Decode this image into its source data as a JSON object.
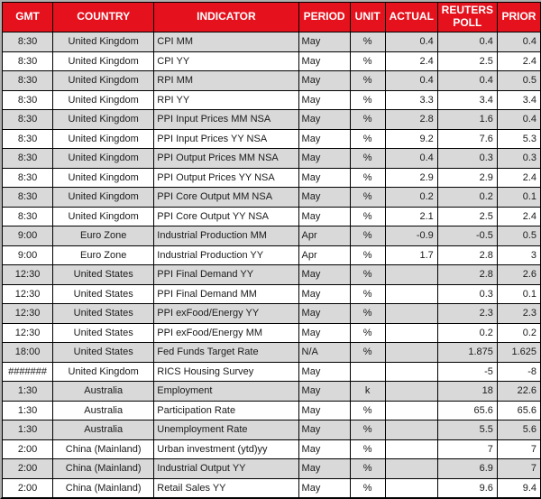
{
  "colors": {
    "header_bg": "#e5121d",
    "header_text": "#ffffff",
    "row_shaded": "#d9d9d9",
    "row_plain": "#ffffff",
    "grid_line": "#000000",
    "outer_edge": "#b0b0b0"
  },
  "table": {
    "columns": [
      {
        "key": "gmt",
        "label": "GMT"
      },
      {
        "key": "country",
        "label": "COUNTRY"
      },
      {
        "key": "indicator",
        "label": "INDICATOR"
      },
      {
        "key": "period",
        "label": "PERIOD"
      },
      {
        "key": "unit",
        "label": "UNIT"
      },
      {
        "key": "actual",
        "label": "ACTUAL"
      },
      {
        "key": "poll",
        "label": "REUTERS POLL"
      },
      {
        "key": "prior",
        "label": "PRIOR"
      }
    ],
    "rows": [
      {
        "gmt": "8:30",
        "country": "United Kingdom",
        "indicator": "CPI MM",
        "period": "May",
        "unit": "%",
        "actual": "0.4",
        "poll": "0.4",
        "prior": "0.4"
      },
      {
        "gmt": "8:30",
        "country": "United Kingdom",
        "indicator": "CPI YY",
        "period": "May",
        "unit": "%",
        "actual": "2.4",
        "poll": "2.5",
        "prior": "2.4"
      },
      {
        "gmt": "8:30",
        "country": "United Kingdom",
        "indicator": "RPI MM",
        "period": "May",
        "unit": "%",
        "actual": "0.4",
        "poll": "0.4",
        "prior": "0.5"
      },
      {
        "gmt": "8:30",
        "country": "United Kingdom",
        "indicator": "RPI YY",
        "period": "May",
        "unit": "%",
        "actual": "3.3",
        "poll": "3.4",
        "prior": "3.4"
      },
      {
        "gmt": "8:30",
        "country": "United Kingdom",
        "indicator": "PPI Input Prices MM NSA",
        "period": "May",
        "unit": "%",
        "actual": "2.8",
        "poll": "1.6",
        "prior": "0.4"
      },
      {
        "gmt": "8:30",
        "country": "United Kingdom",
        "indicator": "PPI Input Prices YY NSA",
        "period": "May",
        "unit": "%",
        "actual": "9.2",
        "poll": "7.6",
        "prior": "5.3"
      },
      {
        "gmt": "8:30",
        "country": "United Kingdom",
        "indicator": "PPI Output Prices MM NSA",
        "period": "May",
        "unit": "%",
        "actual": "0.4",
        "poll": "0.3",
        "prior": "0.3"
      },
      {
        "gmt": "8:30",
        "country": "United Kingdom",
        "indicator": "PPI Output Prices YY NSA",
        "period": "May",
        "unit": "%",
        "actual": "2.9",
        "poll": "2.9",
        "prior": "2.4"
      },
      {
        "gmt": "8:30",
        "country": "United Kingdom",
        "indicator": "PPI Core Output MM NSA",
        "period": "May",
        "unit": "%",
        "actual": "0.2",
        "poll": "0.2",
        "prior": "0.1"
      },
      {
        "gmt": "8:30",
        "country": "United Kingdom",
        "indicator": "PPI Core Output YY NSA",
        "period": "May",
        "unit": "%",
        "actual": "2.1",
        "poll": "2.5",
        "prior": "2.4"
      },
      {
        "gmt": "9:00",
        "country": "Euro Zone",
        "indicator": "Industrial Production MM",
        "period": "Apr",
        "unit": "%",
        "actual": "-0.9",
        "poll": "-0.5",
        "prior": "0.5"
      },
      {
        "gmt": "9:00",
        "country": "Euro Zone",
        "indicator": "Industrial Production YY",
        "period": "Apr",
        "unit": "%",
        "actual": "1.7",
        "poll": "2.8",
        "prior": "3"
      },
      {
        "gmt": "12:30",
        "country": "United States",
        "indicator": "PPI Final Demand YY",
        "period": "May",
        "unit": "%",
        "actual": "",
        "poll": "2.8",
        "prior": "2.6"
      },
      {
        "gmt": "12:30",
        "country": "United States",
        "indicator": "PPI Final Demand MM",
        "period": "May",
        "unit": "%",
        "actual": "",
        "poll": "0.3",
        "prior": "0.1"
      },
      {
        "gmt": "12:30",
        "country": "United States",
        "indicator": "PPI exFood/Energy YY",
        "period": "May",
        "unit": "%",
        "actual": "",
        "poll": "2.3",
        "prior": "2.3"
      },
      {
        "gmt": "12:30",
        "country": "United States",
        "indicator": "PPI exFood/Energy MM",
        "period": "May",
        "unit": "%",
        "actual": "",
        "poll": "0.2",
        "prior": "0.2"
      },
      {
        "gmt": "18:00",
        "country": "United States",
        "indicator": "Fed Funds Target Rate",
        "period": "N/A",
        "unit": "%",
        "actual": "",
        "poll": "1.875",
        "prior": "1.625"
      },
      {
        "gmt": "#######",
        "country": "United Kingdom",
        "indicator": "RICS Housing Survey",
        "period": "May",
        "unit": "",
        "actual": "",
        "poll": "-5",
        "prior": "-8"
      },
      {
        "gmt": "1:30",
        "country": "Australia",
        "indicator": "Employment",
        "period": "May",
        "unit": "k",
        "actual": "",
        "poll": "18",
        "prior": "22.6"
      },
      {
        "gmt": "1:30",
        "country": "Australia",
        "indicator": "Participation Rate",
        "period": "May",
        "unit": "%",
        "actual": "",
        "poll": "65.6",
        "prior": "65.6"
      },
      {
        "gmt": "1:30",
        "country": "Australia",
        "indicator": "Unemployment Rate",
        "period": "May",
        "unit": "%",
        "actual": "",
        "poll": "5.5",
        "prior": "5.6"
      },
      {
        "gmt": "2:00",
        "country": "China (Mainland)",
        "indicator": "Urban investment (ytd)yy",
        "period": "May",
        "unit": "%",
        "actual": "",
        "poll": "7",
        "prior": "7"
      },
      {
        "gmt": "2:00",
        "country": "China (Mainland)",
        "indicator": "Industrial Output YY",
        "period": "May",
        "unit": "%",
        "actual": "",
        "poll": "6.9",
        "prior": "7"
      },
      {
        "gmt": "2:00",
        "country": "China (Mainland)",
        "indicator": "Retail Sales YY",
        "period": "May",
        "unit": "%",
        "actual": "",
        "poll": "9.6",
        "prior": "9.4"
      }
    ]
  }
}
